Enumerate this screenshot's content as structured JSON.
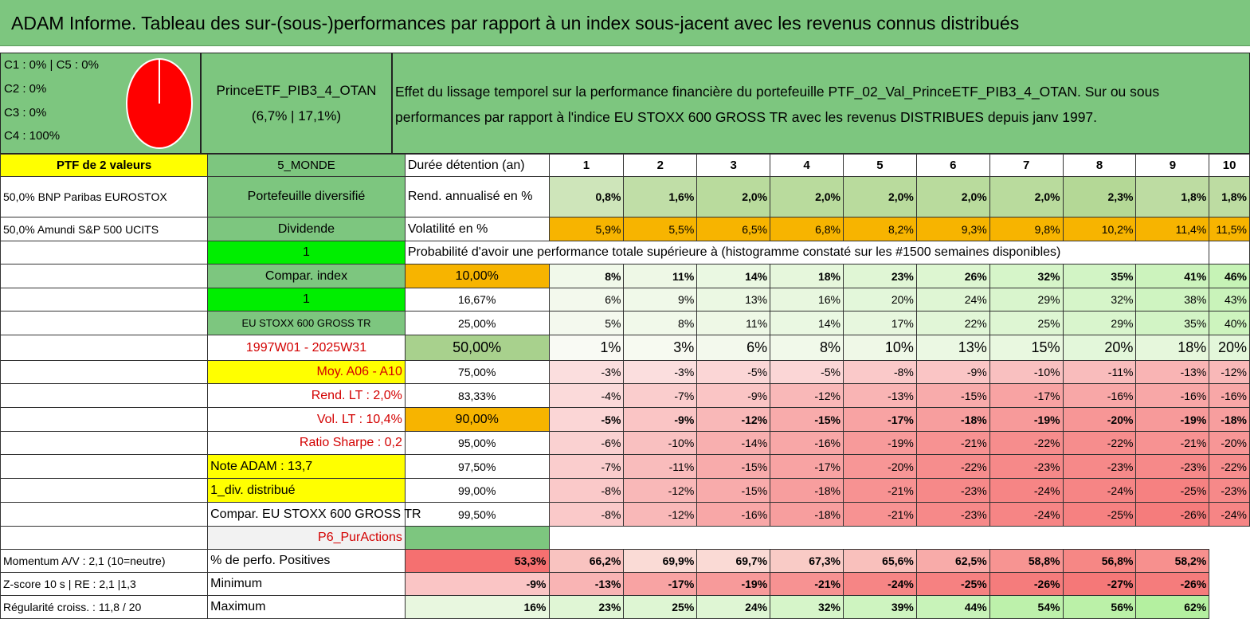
{
  "title": "ADAM Informe. Tableau des sur-(sous-)performances par rapport à un index sous-jacent avec les revenus connus distribués",
  "legend": [
    "C1 : 0% | C5 : 0%",
    "C2 : 0%",
    "C3 : 0%",
    "C4 : 100%"
  ],
  "pie_colors": {
    "fill": "#ff0000",
    "edge": "#ffffff"
  },
  "portfolio": {
    "name": "PrinceETF_PIB3_4_OTAN",
    "stats": "(6,7% | 17,1%)"
  },
  "description": {
    "line1": "Effet du lissage temporel sur la performance financière du portefeuille PTF_02_Val_PrinceETF_PIB3_4_OTAN. Sur ou sous",
    "line2": "performances par rapport à l'indice EU STOXX 600 GROSS TR avec les revenus DISTRIBUES depuis janv 1997."
  },
  "left": {
    "ptf_count": "PTF de 2 valeurs",
    "holding1": "50,0% BNP Paribas EUROSTOX",
    "holding2": "50,0% Amundi S&P 500 UCITS"
  },
  "mid": {
    "region": "5_MONDE",
    "type": "Portefeuille diversifié",
    "dividend": "Dividende",
    "one_a": "1",
    "compar": "Compar. index",
    "one_b": "1",
    "index": "EU STOXX 600 GROSS TR",
    "period": "1997W01 - 2025W31",
    "moy": "Moy. A06 - A10",
    "rend_lt": "Rend. LT : 2,0%",
    "vol_lt": "Vol. LT : 10,4%",
    "sharpe": "Ratio Sharpe : 0,2",
    "note": "Note ADAM : 13,7",
    "div": "1_div. distribué",
    "compar_eu": "Compar. EU STOXX 600 GROSS TR",
    "p6": "P6_PurActions",
    "momentum": "Momentum A/V : 2,1 (10=neutre)",
    "zscore": "Z-score 10 s | RE : 2,1 |1,3",
    "regul": "Régularité croiss. : 11,8 / 20"
  },
  "table": {
    "duration_label": "Durée détention (an)",
    "years": [
      "1",
      "2",
      "3",
      "4",
      "5",
      "6",
      "7",
      "8",
      "9",
      "10"
    ],
    "rend_label": "Rend. annualisé en %",
    "rend": [
      "0,8%",
      "1,6%",
      "2,0%",
      "2,0%",
      "2,0%",
      "2,0%",
      "2,0%",
      "2,3%",
      "1,8%",
      "1,8%"
    ],
    "vol_label": "Volatilité en %",
    "vol": [
      "5,9%",
      "5,5%",
      "6,5%",
      "6,8%",
      "8,2%",
      "9,3%",
      "9,8%",
      "10,2%",
      "11,4%",
      "11,5%"
    ],
    "prob_heading": "Probabilité d'avoir une performance totale supérieure à (histogramme constaté sur les #1500 semaines disponibles)",
    "prob_rows": [
      {
        "th": "10,00%",
        "v": [
          "8%",
          "11%",
          "14%",
          "18%",
          "23%",
          "26%",
          "32%",
          "35%",
          "41%",
          "46%"
        ]
      },
      {
        "th": "16,67%",
        "v": [
          "6%",
          "9%",
          "13%",
          "16%",
          "20%",
          "24%",
          "29%",
          "32%",
          "38%",
          "43%"
        ]
      },
      {
        "th": "25,00%",
        "v": [
          "5%",
          "8%",
          "11%",
          "14%",
          "17%",
          "22%",
          "25%",
          "29%",
          "35%",
          "40%"
        ]
      },
      {
        "th": "50,00%",
        "v": [
          "1%",
          "3%",
          "6%",
          "8%",
          "10%",
          "13%",
          "15%",
          "20%",
          "18%",
          "20%"
        ]
      },
      {
        "th": "75,00%",
        "v": [
          "-3%",
          "-3%",
          "-5%",
          "-5%",
          "-8%",
          "-9%",
          "-10%",
          "-11%",
          "-13%",
          "-12%"
        ]
      },
      {
        "th": "83,33%",
        "v": [
          "-4%",
          "-7%",
          "-9%",
          "-12%",
          "-13%",
          "-15%",
          "-17%",
          "-16%",
          "-16%",
          "-16%"
        ]
      },
      {
        "th": "90,00%",
        "v": [
          "-5%",
          "-9%",
          "-12%",
          "-15%",
          "-17%",
          "-18%",
          "-19%",
          "-20%",
          "-19%",
          "-18%"
        ]
      },
      {
        "th": "95,00%",
        "v": [
          "-6%",
          "-10%",
          "-14%",
          "-16%",
          "-19%",
          "-21%",
          "-22%",
          "-22%",
          "-21%",
          "-20%"
        ]
      },
      {
        "th": "97,50%",
        "v": [
          "-7%",
          "-11%",
          "-15%",
          "-17%",
          "-20%",
          "-22%",
          "-23%",
          "-23%",
          "-23%",
          "-22%"
        ]
      },
      {
        "th": "99,00%",
        "v": [
          "-8%",
          "-12%",
          "-15%",
          "-18%",
          "-21%",
          "-23%",
          "-24%",
          "-24%",
          "-25%",
          "-23%"
        ]
      },
      {
        "th": "99,50%",
        "v": [
          "-8%",
          "-12%",
          "-16%",
          "-18%",
          "-21%",
          "-23%",
          "-24%",
          "-25%",
          "-26%",
          "-24%"
        ]
      }
    ],
    "pos_label": "% de perfo. Positives",
    "pos": [
      "53,3%",
      "66,2%",
      "69,9%",
      "69,7%",
      "67,3%",
      "65,6%",
      "62,5%",
      "58,8%",
      "56,8%",
      "58,2%"
    ],
    "min_label": "Minimum",
    "min": [
      "-9%",
      "-13%",
      "-17%",
      "-19%",
      "-21%",
      "-24%",
      "-25%",
      "-26%",
      "-27%",
      "-26%"
    ],
    "max_label": "Maximum",
    "max": [
      "16%",
      "23%",
      "25%",
      "24%",
      "32%",
      "39%",
      "44%",
      "54%",
      "56%",
      "62%"
    ]
  }
}
